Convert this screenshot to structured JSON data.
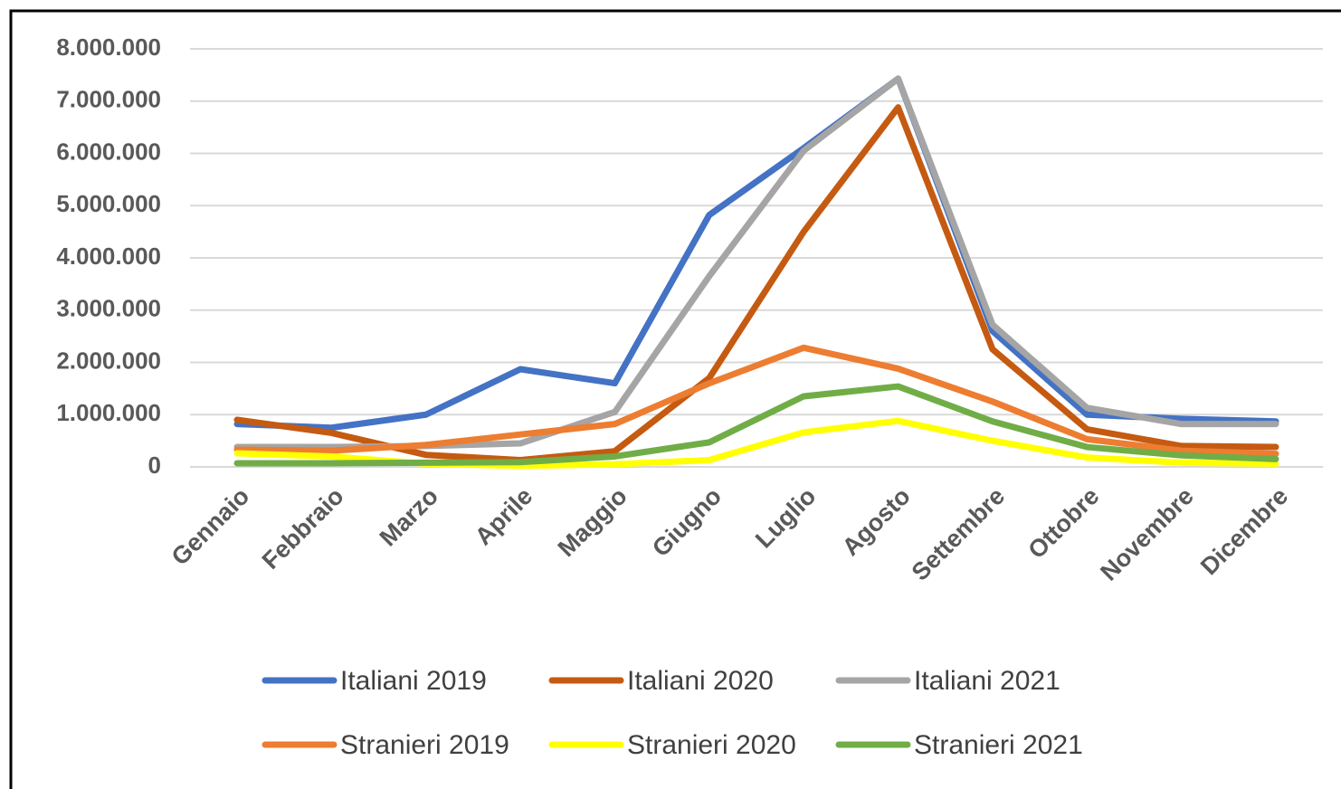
{
  "chart_data": {
    "type": "line",
    "categories": [
      "Gennaio",
      "Febbraio",
      "Marzo",
      "Aprile",
      "Maggio",
      "Giugno",
      "Luglio",
      "Agosto",
      "Settembre",
      "Ottobre",
      "Novembre",
      "Dicembre"
    ],
    "series": [
      {
        "name": "Italiani 2019",
        "color": "#4472c4",
        "values": [
          820000,
          750000,
          1000000,
          1870000,
          1600000,
          4820000,
          6100000,
          7430000,
          2600000,
          1000000,
          920000,
          870000
        ]
      },
      {
        "name": "Italiani 2020",
        "color": "#c55a11",
        "values": [
          900000,
          650000,
          230000,
          130000,
          300000,
          1700000,
          4500000,
          6880000,
          2250000,
          720000,
          400000,
          380000
        ]
      },
      {
        "name": "Italiani 2021",
        "color": "#a5a5a5",
        "values": [
          380000,
          380000,
          400000,
          450000,
          1050000,
          3650000,
          6050000,
          7430000,
          2720000,
          1130000,
          820000,
          820000
        ]
      },
      {
        "name": "Stranieri 2019",
        "color": "#ed7d31",
        "values": [
          330000,
          310000,
          420000,
          620000,
          820000,
          1600000,
          2280000,
          1880000,
          1250000,
          530000,
          310000,
          250000
        ]
      },
      {
        "name": "Stranieri 2020",
        "color": "#ffff00",
        "values": [
          260000,
          200000,
          60000,
          20000,
          50000,
          130000,
          660000,
          880000,
          500000,
          180000,
          80000,
          60000
        ]
      },
      {
        "name": "Stranieri 2021",
        "color": "#70ad47",
        "values": [
          70000,
          70000,
          80000,
          90000,
          200000,
          470000,
          1350000,
          1540000,
          870000,
          380000,
          220000,
          150000
        ]
      }
    ],
    "ylim": [
      0,
      8000000
    ],
    "yticks": [
      0,
      {
        "value": 1000000,
        "label": "1.000.000"
      },
      {
        "value": 2000000,
        "label": "2.000.000"
      },
      {
        "value": 3000000,
        "label": "3.000.000"
      },
      {
        "value": 4000000,
        "label": "4.000.000"
      },
      {
        "value": 5000000,
        "label": "5.000.000"
      },
      {
        "value": 6000000,
        "label": "6.000.000"
      },
      {
        "value": 7000000,
        "label": "7.000.000"
      },
      {
        "value": 8000000,
        "label": "8.000.000"
      }
    ],
    "grid": true,
    "legend": "bottom"
  }
}
